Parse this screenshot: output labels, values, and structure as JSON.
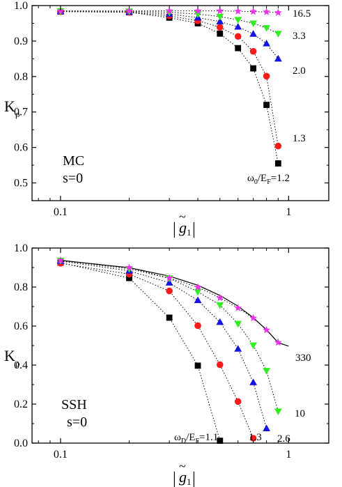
{
  "chart_data": [
    {
      "type": "scatter",
      "xscale": "log",
      "xlim": [
        0.075,
        1.5
      ],
      "ylim": [
        0.45,
        1.0
      ],
      "xticks": [
        {
          "v": 0.1,
          "label": "0.1"
        },
        {
          "v": 1,
          "label": "1"
        }
      ],
      "yticks": [
        {
          "v": 0.5,
          "label": "0.5"
        },
        {
          "v": 0.6,
          "label": "0.6"
        },
        {
          "v": 0.7,
          "label": "0.7"
        },
        {
          "v": 0.8,
          "label": "0.8"
        },
        {
          "v": 0.9,
          "label": "0.9"
        },
        {
          "v": 1.0,
          "label": "1.0"
        }
      ],
      "xlabel": "|g̃₁|",
      "ylabel": "Kρ",
      "annotations": [
        {
          "id": "model",
          "text": "MC"
        },
        {
          "id": "s",
          "text": "s=0"
        },
        {
          "id": "param",
          "text": "ω0/EF=1.2"
        }
      ],
      "series": [
        {
          "label": "1.2",
          "marker": "square",
          "color": "#000000",
          "x": [
            0.1,
            0.2,
            0.3,
            0.4,
            0.5,
            0.6,
            0.7,
            0.8,
            0.9
          ],
          "y": [
            0.983,
            0.981,
            0.966,
            0.95,
            0.921,
            0.88,
            0.823,
            0.72,
            0.555
          ]
        },
        {
          "label": "1.3",
          "marker": "circle",
          "color": "#ff1a1a",
          "x": [
            0.1,
            0.2,
            0.3,
            0.4,
            0.5,
            0.6,
            0.7,
            0.8,
            0.9
          ],
          "y": [
            0.983,
            0.981,
            0.971,
            0.957,
            0.939,
            0.913,
            0.871,
            0.801,
            0.604
          ]
        },
        {
          "label": "2.0",
          "marker": "triangle-up",
          "color": "#1515e0",
          "x": [
            0.1,
            0.2,
            0.3,
            0.4,
            0.5,
            0.6,
            0.7,
            0.8,
            0.9
          ],
          "y": [
            0.984,
            0.982,
            0.976,
            0.966,
            0.955,
            0.94,
            0.92,
            0.893,
            0.85
          ]
        },
        {
          "label": "3.3",
          "marker": "triangle-down",
          "color": "#33ee22",
          "x": [
            0.1,
            0.2,
            0.3,
            0.4,
            0.5,
            0.6,
            0.7,
            0.8,
            0.9
          ],
          "y": [
            0.985,
            0.984,
            0.981,
            0.976,
            0.969,
            0.96,
            0.95,
            0.937,
            0.921
          ]
        },
        {
          "label": "16.5",
          "marker": "star",
          "color": "#ee33ee",
          "x": [
            0.1,
            0.2,
            0.3,
            0.4,
            0.5,
            0.6,
            0.7,
            0.8,
            0.9
          ],
          "y": [
            0.985,
            0.985,
            0.985,
            0.985,
            0.985,
            0.984,
            0.983,
            0.982,
            0.98
          ]
        }
      ]
    },
    {
      "type": "scatter",
      "xscale": "log",
      "xlim": [
        0.075,
        1.5
      ],
      "ylim": [
        0.0,
        1.0
      ],
      "xticks": [
        {
          "v": 0.1,
          "label": "0.1"
        },
        {
          "v": 1,
          "label": "1"
        }
      ],
      "yticks": [
        {
          "v": 0.0,
          "label": "0.0"
        },
        {
          "v": 0.2,
          "label": "0.2"
        },
        {
          "v": 0.4,
          "label": "0.4"
        },
        {
          "v": 0.6,
          "label": "0.6"
        },
        {
          "v": 0.8,
          "label": "0.8"
        },
        {
          "v": 1.0,
          "label": "1.0"
        }
      ],
      "xlabel": "|g̃₁|",
      "ylabel": "Kρ",
      "annotations": [
        {
          "id": "model",
          "text": "SSH"
        },
        {
          "id": "s",
          "text": "s=0"
        },
        {
          "id": "param",
          "text": "ωD/EF=1.1"
        }
      ],
      "reference_curve": {
        "x": [
          0.1,
          0.2,
          0.3,
          0.4,
          0.5,
          0.6,
          0.7,
          0.8,
          0.9,
          1.0
        ],
        "y": [
          0.937,
          0.899,
          0.856,
          0.809,
          0.757,
          0.702,
          0.643,
          0.581,
          0.515,
          0.497
        ]
      },
      "series": [
        {
          "label": "1.1",
          "marker": "square",
          "color": "#000000",
          "x": [
            0.1,
            0.2,
            0.3,
            0.4,
            0.5
          ],
          "y": [
            0.925,
            0.846,
            0.643,
            0.397,
            0.012
          ]
        },
        {
          "label": "1.3",
          "marker": "circle",
          "color": "#ff1a1a",
          "x": [
            0.1,
            0.2,
            0.3,
            0.4,
            0.5,
            0.6,
            0.7
          ],
          "y": [
            0.922,
            0.866,
            0.78,
            0.602,
            0.402,
            0.213,
            0.025
          ]
        },
        {
          "label": "2.6",
          "marker": "triangle-up",
          "color": "#1515e0",
          "x": [
            0.1,
            0.2,
            0.3,
            0.4,
            0.5,
            0.6,
            0.7,
            0.8
          ],
          "y": [
            0.933,
            0.883,
            0.822,
            0.732,
            0.62,
            0.483,
            0.311,
            0.075
          ]
        },
        {
          "label": "10",
          "marker": "triangle-down",
          "color": "#33ee22",
          "x": [
            0.1,
            0.2,
            0.3,
            0.4,
            0.5,
            0.6,
            0.7,
            0.8,
            0.9
          ],
          "y": [
            0.936,
            0.893,
            0.845,
            0.776,
            0.708,
            0.612,
            0.502,
            0.371,
            0.163
          ]
        },
        {
          "label": "330",
          "marker": "star",
          "color": "#ee33ee",
          "x": [
            0.1,
            0.2,
            0.3,
            0.4,
            0.5,
            0.6,
            0.7,
            0.8,
            0.9
          ],
          "y": [
            0.937,
            0.899,
            0.846,
            0.799,
            0.745,
            0.693,
            0.641,
            0.58,
            0.516
          ]
        }
      ]
    }
  ]
}
